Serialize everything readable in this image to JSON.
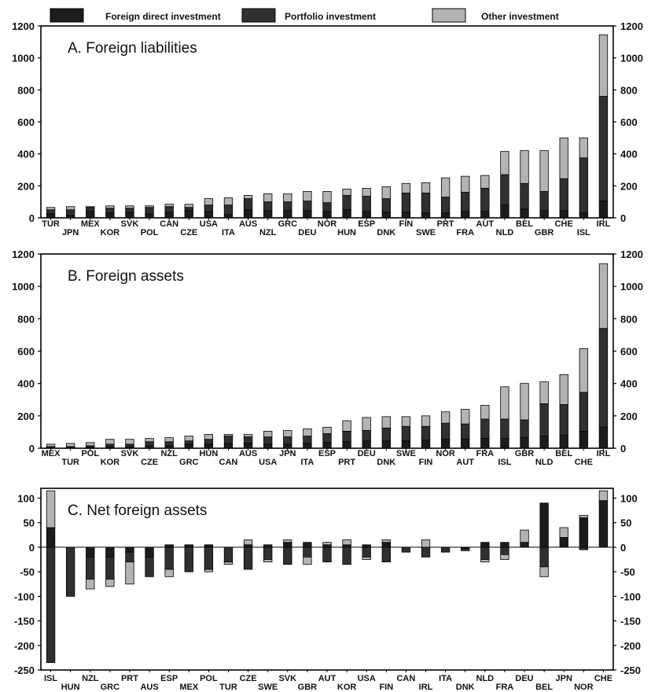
{
  "legend": [
    {
      "label": "Foreign direct investment",
      "color": "#1c1c1c"
    },
    {
      "label": "Portfolio investment",
      "color": "#303030"
    },
    {
      "label": "Other investment",
      "color": "#b4b4b4"
    }
  ],
  "chart_data": [
    {
      "type": "bar",
      "stacked": true,
      "title": "A. Foreign liabilities",
      "ylim": [
        0,
        1200
      ],
      "yticks": [
        0,
        200,
        400,
        600,
        800,
        1000,
        1200
      ],
      "categories": [
        "TUR",
        "JPN",
        "MEX",
        "KOR",
        "SVK",
        "POL",
        "CAN",
        "CZE",
        "USA",
        "ITA",
        "AUS",
        "NZL",
        "GRC",
        "DEU",
        "NOR",
        "HUN",
        "ESP",
        "DNK",
        "FIN",
        "SWE",
        "PRT",
        "FRA",
        "AUT",
        "NLD",
        "BEL",
        "GBR",
        "CHE",
        "ISL",
        "IRL"
      ],
      "series": [
        {
          "name": "Foreign direct investment",
          "values": [
            25,
            15,
            40,
            30,
            35,
            25,
            35,
            45,
            40,
            20,
            50,
            45,
            45,
            45,
            40,
            50,
            40,
            35,
            35,
            30,
            30,
            40,
            40,
            80,
            55,
            45,
            45,
            30,
            105
          ]
        },
        {
          "name": "Portfolio investment",
          "values": [
            25,
            35,
            25,
            30,
            25,
            40,
            35,
            20,
            40,
            60,
            70,
            55,
            55,
            60,
            55,
            90,
            95,
            85,
            120,
            125,
            100,
            120,
            145,
            190,
            160,
            120,
            200,
            345,
            655
          ]
        },
        {
          "name": "Other investment",
          "values": [
            15,
            20,
            5,
            15,
            15,
            10,
            15,
            20,
            40,
            45,
            20,
            50,
            50,
            60,
            70,
            40,
            50,
            75,
            60,
            65,
            120,
            100,
            80,
            145,
            205,
            255,
            255,
            125,
            385
          ]
        }
      ]
    },
    {
      "type": "bar",
      "stacked": true,
      "title": "B. Foreign assets",
      "ylim": [
        0,
        1200
      ],
      "yticks": [
        0,
        200,
        400,
        600,
        800,
        1000,
        1200
      ],
      "categories": [
        "MEX",
        "TUR",
        "POL",
        "KOR",
        "SVK",
        "CZE",
        "NZL",
        "GRC",
        "HUN",
        "CAN",
        "AUS",
        "USA",
        "JPN",
        "ITA",
        "ESP",
        "PRT",
        "DEU",
        "DNK",
        "SWE",
        "FIN",
        "NOR",
        "AUT",
        "FRA",
        "ISL",
        "GBR",
        "NLD",
        "BEL",
        "CHE",
        "IRL"
      ],
      "series": [
        {
          "name": "Foreign direct investment",
          "values": [
            5,
            5,
            5,
            10,
            10,
            15,
            15,
            25,
            25,
            30,
            30,
            25,
            25,
            30,
            35,
            40,
            45,
            45,
            45,
            50,
            55,
            55,
            60,
            60,
            65,
            75,
            80,
            105,
            130
          ]
        },
        {
          "name": "Portfolio investment",
          "values": [
            5,
            5,
            10,
            15,
            15,
            25,
            25,
            20,
            30,
            45,
            40,
            45,
            45,
            45,
            55,
            65,
            65,
            80,
            90,
            85,
            100,
            95,
            120,
            120,
            110,
            200,
            190,
            240,
            610
          ]
        },
        {
          "name": "Other investment",
          "values": [
            15,
            20,
            20,
            30,
            30,
            20,
            25,
            30,
            30,
            10,
            15,
            35,
            40,
            45,
            40,
            65,
            80,
            70,
            60,
            65,
            70,
            90,
            85,
            200,
            225,
            135,
            185,
            270,
            400
          ]
        }
      ]
    },
    {
      "type": "bar",
      "stacked": true,
      "title": "C. Net foreign assets",
      "ylim": [
        -250,
        120
      ],
      "yticks": [
        -250,
        -200,
        -150,
        -100,
        -50,
        0,
        50,
        100
      ],
      "categories": [
        "ISL",
        "HUN",
        "NZL",
        "GRC",
        "PRT",
        "AUS",
        "ESP",
        "MEX",
        "POL",
        "TUR",
        "CZE",
        "SWE",
        "SVK",
        "GBR",
        "AUT",
        "KOR",
        "USA",
        "FIN",
        "CAN",
        "IRL",
        "ITA",
        "DNK",
        "NLD",
        "FRA",
        "DEU",
        "BEL",
        "JPN",
        "NOR",
        "CHE"
      ],
      "series": [
        {
          "name": "Foreign direct investment",
          "values": [
            40,
            0,
            -20,
            -20,
            -10,
            -20,
            5,
            5,
            5,
            0,
            5,
            5,
            10,
            10,
            5,
            5,
            5,
            10,
            0,
            0,
            0,
            -2,
            10,
            10,
            10,
            90,
            20,
            60,
            95
          ]
        },
        {
          "name": "Portfolio investment",
          "values": [
            -235,
            -100,
            -45,
            -45,
            -20,
            -40,
            -45,
            -50,
            -45,
            -30,
            -45,
            -25,
            -35,
            -20,
            -30,
            -35,
            -20,
            -30,
            -10,
            -20,
            -10,
            -5,
            -25,
            -15,
            0,
            -40,
            0,
            -5,
            0
          ]
        },
        {
          "name": "Other investment",
          "values": [
            75,
            0,
            -20,
            -15,
            -45,
            0,
            -15,
            0,
            -5,
            -5,
            10,
            -5,
            5,
            -15,
            5,
            10,
            -5,
            5,
            0,
            15,
            0,
            0,
            -5,
            -10,
            25,
            -20,
            20,
            5,
            20
          ]
        }
      ]
    }
  ]
}
